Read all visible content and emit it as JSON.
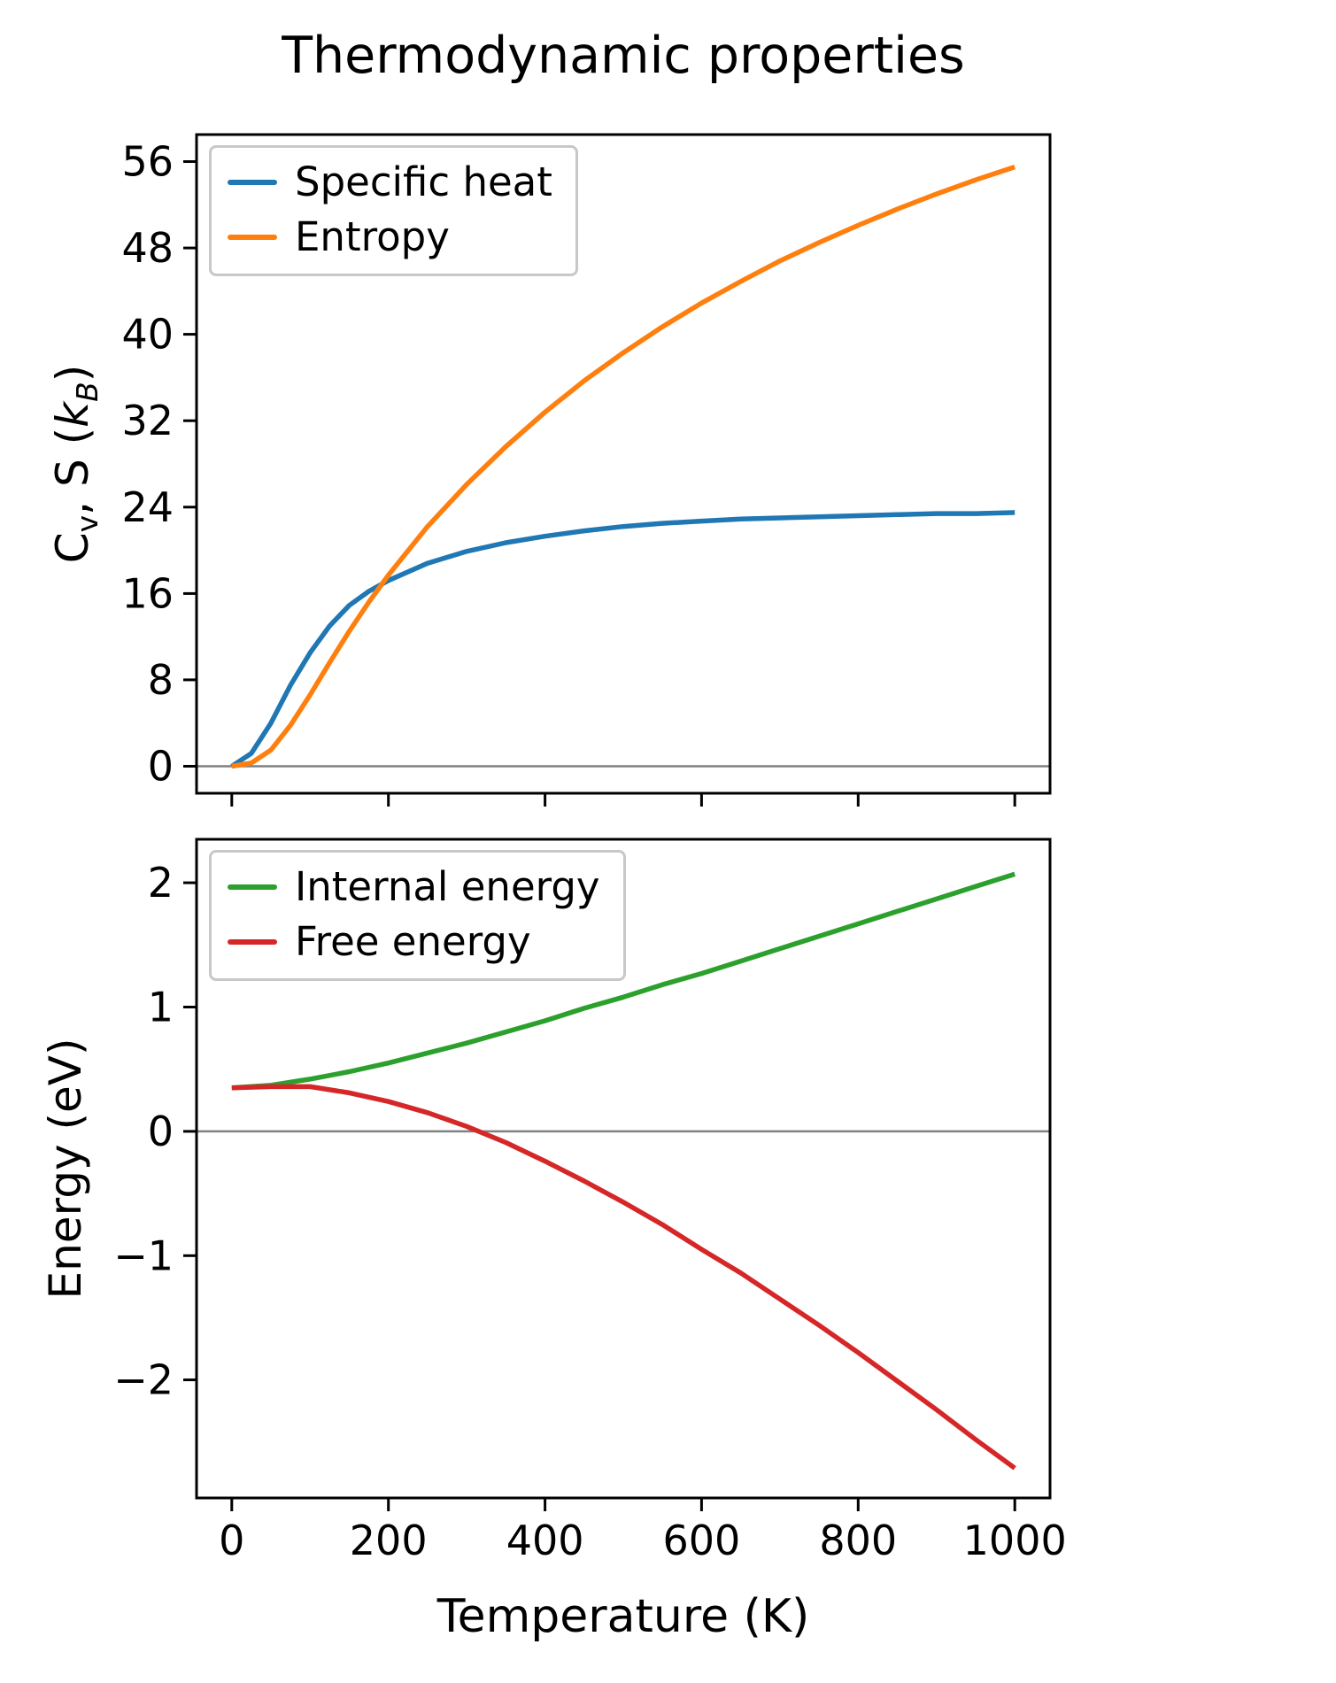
{
  "title": "Thermodynamic properties",
  "xlabel": "Temperature (K)",
  "ylabels": {
    "top": {
      "c": "C",
      "c_sub": "v",
      "mid": ", S (",
      "k": "k",
      "k_sub": "B",
      "close": ")"
    },
    "bottom": "Energy (eV)"
  },
  "colors": {
    "axis": "#000000",
    "zero_line": "#808080",
    "legend_border": "#c8c8c8"
  },
  "chart_data": [
    {
      "type": "line",
      "title": "Thermodynamic properties",
      "xlabel": "Temperature (K)",
      "ylabel": "Cv, S (kB)",
      "xlim": [
        -45,
        1045
      ],
      "ylim": [
        -2.5,
        58.5
      ],
      "xticks": [
        0,
        200,
        400,
        600,
        800,
        1000
      ],
      "yticks": [
        0,
        8,
        16,
        24,
        32,
        40,
        48,
        56
      ],
      "grid": false,
      "zero_line": true,
      "legend_position": "upper left",
      "x": [
        0,
        25,
        50,
        75,
        100,
        125,
        150,
        175,
        200,
        250,
        300,
        350,
        400,
        450,
        500,
        550,
        600,
        650,
        700,
        750,
        800,
        850,
        900,
        950,
        1000
      ],
      "series": [
        {
          "name": "Specific heat",
          "color": "#1f77b4",
          "values": [
            0,
            1.2,
            4.0,
            7.5,
            10.5,
            13.0,
            14.9,
            16.2,
            17.2,
            18.8,
            19.9,
            20.7,
            21.3,
            21.8,
            22.2,
            22.5,
            22.7,
            22.9,
            23.0,
            23.1,
            23.2,
            23.3,
            23.4,
            23.4,
            23.5
          ]
        },
        {
          "name": "Entropy",
          "color": "#ff7f0e",
          "values": [
            0,
            0.3,
            1.5,
            3.8,
            6.6,
            9.6,
            12.5,
            15.2,
            17.7,
            22.2,
            26.1,
            29.6,
            32.8,
            35.7,
            38.3,
            40.7,
            42.9,
            44.9,
            46.8,
            48.5,
            50.1,
            51.6,
            53.0,
            54.3,
            55.5
          ]
        }
      ]
    },
    {
      "type": "line",
      "title": "",
      "xlabel": "Temperature (K)",
      "ylabel": "Energy (eV)",
      "xlim": [
        -45,
        1045
      ],
      "ylim": [
        -2.95,
        2.35
      ],
      "xticks": [
        0,
        200,
        400,
        600,
        800,
        1000
      ],
      "yticks": [
        -2,
        -1,
        0,
        1,
        2
      ],
      "grid": false,
      "zero_line": true,
      "legend_position": "upper left",
      "x": [
        0,
        50,
        100,
        150,
        200,
        250,
        300,
        350,
        400,
        450,
        500,
        550,
        600,
        650,
        700,
        750,
        800,
        850,
        900,
        950,
        1000
      ],
      "series": [
        {
          "name": "Internal energy",
          "color": "#2ca02c",
          "values": [
            0.35,
            0.37,
            0.42,
            0.48,
            0.55,
            0.63,
            0.71,
            0.8,
            0.89,
            0.99,
            1.08,
            1.18,
            1.27,
            1.37,
            1.47,
            1.57,
            1.67,
            1.77,
            1.87,
            1.97,
            2.07
          ]
        },
        {
          "name": "Free energy",
          "color": "#d62728",
          "values": [
            0.35,
            0.36,
            0.36,
            0.31,
            0.24,
            0.15,
            0.04,
            -0.09,
            -0.24,
            -0.4,
            -0.57,
            -0.75,
            -0.95,
            -1.14,
            -1.35,
            -1.56,
            -1.78,
            -2.01,
            -2.24,
            -2.48,
            -2.71
          ]
        }
      ]
    }
  ]
}
